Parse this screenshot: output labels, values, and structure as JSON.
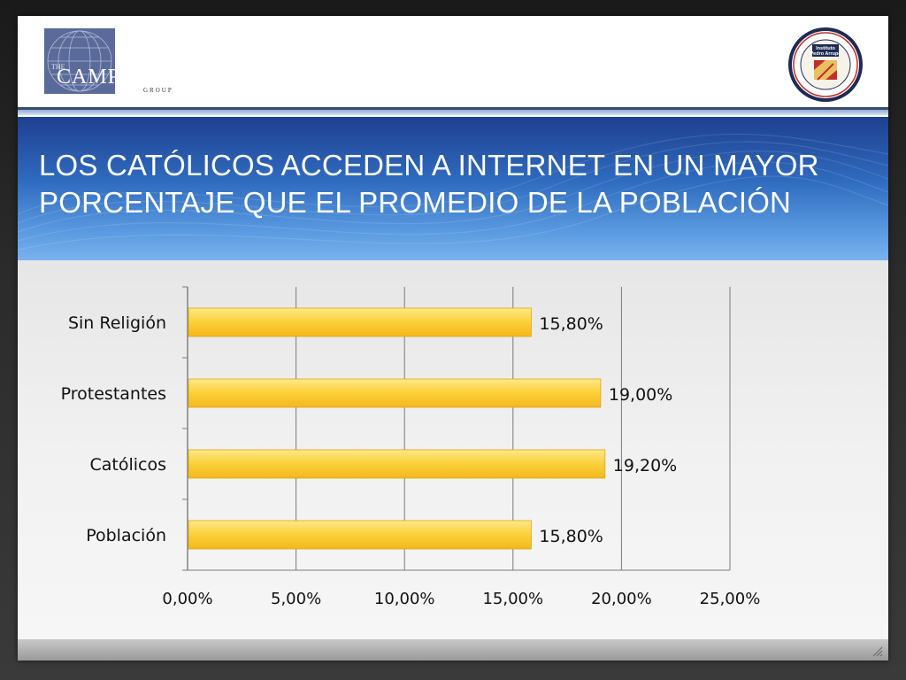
{
  "header": {
    "left_logo_text": "CAMPOL",
    "left_logo_top": "THE",
    "left_logo_bottom": "GROUP",
    "right_logo_text_line1": "Instituto",
    "right_logo_text_line2": "Pedro Arrupe"
  },
  "title": {
    "line1": "LOS CATÓLICOS ACCEDEN A INTERNET EN UN MAYOR",
    "line2": "PORCENTAJE QUE EL PROMEDIO DE LA POBLACIÓN"
  },
  "colors": {
    "bar_fill": "#fbcb2e",
    "bar_highlight": "#fde98a",
    "gridline": "#7a7a7a"
  },
  "chart_data": {
    "type": "bar",
    "orientation": "horizontal",
    "categories": [
      "Sin Religión",
      "Protestantes",
      "Católicos",
      "Población"
    ],
    "values": [
      15.8,
      19.0,
      19.2,
      15.8
    ],
    "data_labels": [
      "15,80%",
      "19,00%",
      "19,20%",
      "15,80%"
    ],
    "xlim": [
      0,
      25
    ],
    "xticks": [
      0,
      5,
      10,
      15,
      20,
      25
    ],
    "xtick_labels": [
      "0,00%",
      "5,00%",
      "10,00%",
      "15,00%",
      "20,00%",
      "25,00%"
    ],
    "grid": true,
    "legend": "none"
  }
}
